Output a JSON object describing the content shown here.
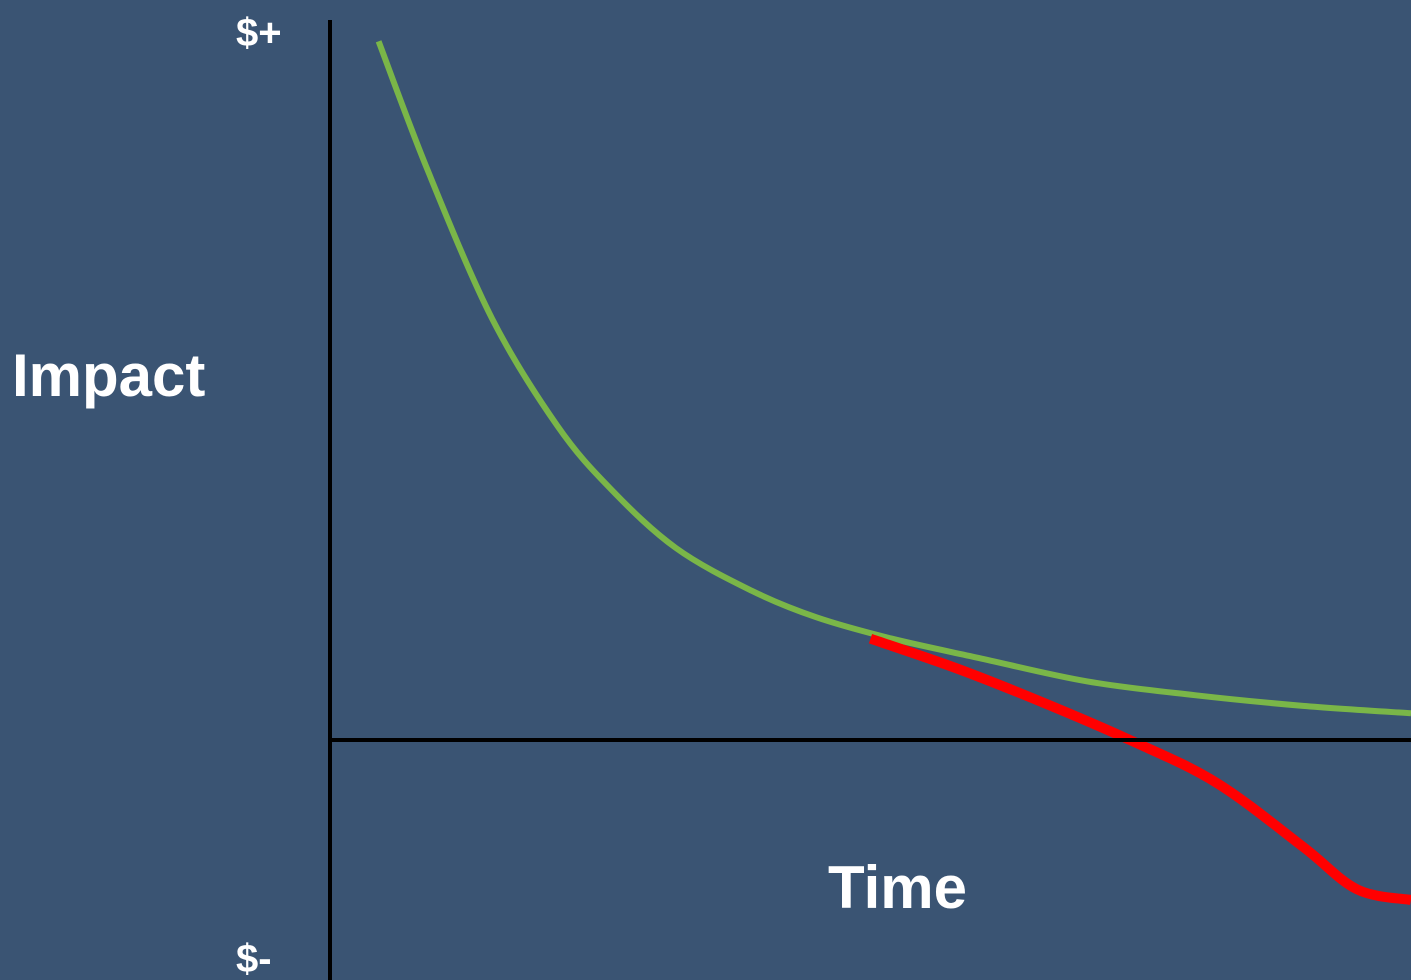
{
  "background": "#3a5473",
  "chart_data": {
    "type": "line",
    "title": "",
    "xlabel": "Time",
    "ylabel": "Impact",
    "y_top_label": "$+",
    "y_bottom_label": "$-",
    "xlim": [
      0,
      10
    ],
    "ylim": [
      -2.2,
      6.8
    ],
    "grid": false,
    "legend": "none",
    "series": [
      {
        "color": "#7ab648",
        "x": [
          0.45,
          0.9,
          1.5,
          2.1,
          2.6,
          3.2,
          3.9,
          4.5,
          5.2,
          6.0,
          7.0,
          8.0,
          9.0,
          10.0
        ],
        "y": [
          6.6,
          5.4,
          4.0,
          3.0,
          2.4,
          1.85,
          1.45,
          1.2,
          1.0,
          0.82,
          0.6,
          0.47,
          0.37,
          0.3
        ]
      },
      {
        "color": "#ff0000",
        "x": [
          5.0,
          5.8,
          6.6,
          7.4,
          8.2,
          9.0,
          9.5,
          10.0
        ],
        "y": [
          1.0,
          0.72,
          0.4,
          0.05,
          -0.35,
          -0.95,
          -1.35,
          -1.45
        ]
      }
    ]
  }
}
